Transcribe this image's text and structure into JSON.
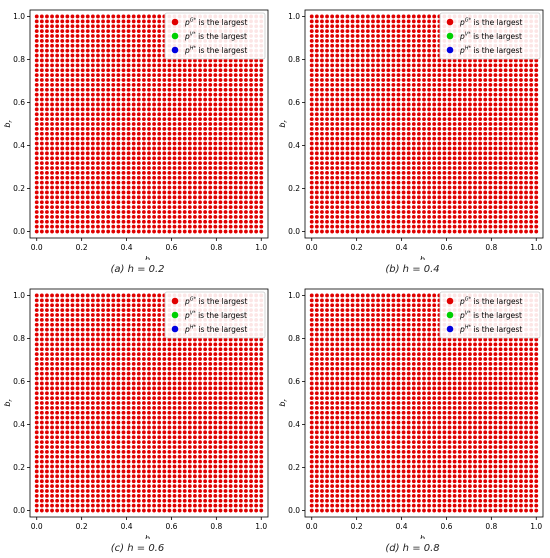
{
  "chart_data": [
    {
      "type": "scatter",
      "panel_label": "(a)",
      "parameter_text": "h = 0.2",
      "xlabel": "b_v",
      "ylabel": "b_r",
      "xlim": [
        -0.03,
        1.03
      ],
      "ylim": [
        -0.03,
        1.03
      ],
      "xticks": [
        "0.0",
        "0.2",
        "0.4",
        "0.6",
        "0.8",
        "1.0"
      ],
      "yticks": [
        "0.0",
        "0.2",
        "0.4",
        "0.6",
        "0.8",
        "1.0"
      ],
      "grid": false,
      "legend_position": "top-right",
      "legend": [
        {
          "label_html": "p^{G*} is the largest",
          "sup": "G*",
          "text": "is the largest",
          "color": "#e00000"
        },
        {
          "label_html": "p^{V*} is the largest",
          "sup": "V*",
          "text": "is the largest",
          "color": "#00d000"
        },
        {
          "label_html": "p^{H*} is the largest",
          "sup": "H*",
          "text": "is the largest",
          "color": "#0000e0"
        }
      ],
      "grid_points": {
        "x_start": 0.0,
        "x_end": 1.0,
        "y_start": 0.0,
        "y_end": 1.0,
        "n": 45,
        "color": "#e00000"
      }
    },
    {
      "type": "scatter",
      "panel_label": "(b)",
      "parameter_text": "h = 0.4",
      "xlabel": "b_v",
      "ylabel": "b_r",
      "xlim": [
        -0.03,
        1.03
      ],
      "ylim": [
        -0.03,
        1.03
      ],
      "xticks": [
        "0.0",
        "0.2",
        "0.4",
        "0.6",
        "0.8",
        "1.0"
      ],
      "yticks": [
        "0.0",
        "0.2",
        "0.4",
        "0.6",
        "0.8",
        "1.0"
      ],
      "grid": false,
      "legend_position": "top-right",
      "legend": [
        {
          "sup": "G*",
          "text": "is the largest",
          "color": "#e00000"
        },
        {
          "sup": "V*",
          "text": "is the largest",
          "color": "#00d000"
        },
        {
          "sup": "H*",
          "text": "is the largest",
          "color": "#0000e0"
        }
      ],
      "grid_points": {
        "x_start": 0.0,
        "x_end": 1.0,
        "y_start": 0.0,
        "y_end": 1.0,
        "n": 45,
        "color": "#e00000"
      }
    },
    {
      "type": "scatter",
      "panel_label": "(c)",
      "parameter_text": "h = 0.6",
      "xlabel": "b_v",
      "ylabel": "b_r",
      "xlim": [
        -0.03,
        1.03
      ],
      "ylim": [
        -0.03,
        1.03
      ],
      "xticks": [
        "0.0",
        "0.2",
        "0.4",
        "0.6",
        "0.8",
        "1.0"
      ],
      "yticks": [
        "0.0",
        "0.2",
        "0.4",
        "0.6",
        "0.8",
        "1.0"
      ],
      "grid": false,
      "legend_position": "top-right",
      "legend": [
        {
          "sup": "G*",
          "text": "is the largest",
          "color": "#e00000"
        },
        {
          "sup": "V*",
          "text": "is the largest",
          "color": "#00d000"
        },
        {
          "sup": "H*",
          "text": "is the largest",
          "color": "#0000e0"
        }
      ],
      "grid_points": {
        "x_start": 0.0,
        "x_end": 1.0,
        "y_start": 0.0,
        "y_end": 1.0,
        "n": 45,
        "color": "#e00000"
      }
    },
    {
      "type": "scatter",
      "panel_label": "(d)",
      "parameter_text": "h = 0.8",
      "xlabel": "b_v",
      "ylabel": "b_r",
      "xlim": [
        -0.03,
        1.03
      ],
      "ylim": [
        -0.03,
        1.03
      ],
      "xticks": [
        "0.0",
        "0.2",
        "0.4",
        "0.6",
        "0.8",
        "1.0"
      ],
      "yticks": [
        "0.0",
        "0.2",
        "0.4",
        "0.6",
        "0.8",
        "1.0"
      ],
      "grid": false,
      "legend_position": "top-right",
      "legend": [
        {
          "sup": "G*",
          "text": "is the largest",
          "color": "#e00000"
        },
        {
          "sup": "V*",
          "text": "is the largest",
          "color": "#00d000"
        },
        {
          "sup": "H*",
          "text": "is the largest",
          "color": "#0000e0"
        }
      ],
      "grid_points": {
        "x_start": 0.0,
        "x_end": 1.0,
        "y_start": 0.0,
        "y_end": 1.0,
        "n": 45,
        "color": "#e00000"
      }
    }
  ]
}
